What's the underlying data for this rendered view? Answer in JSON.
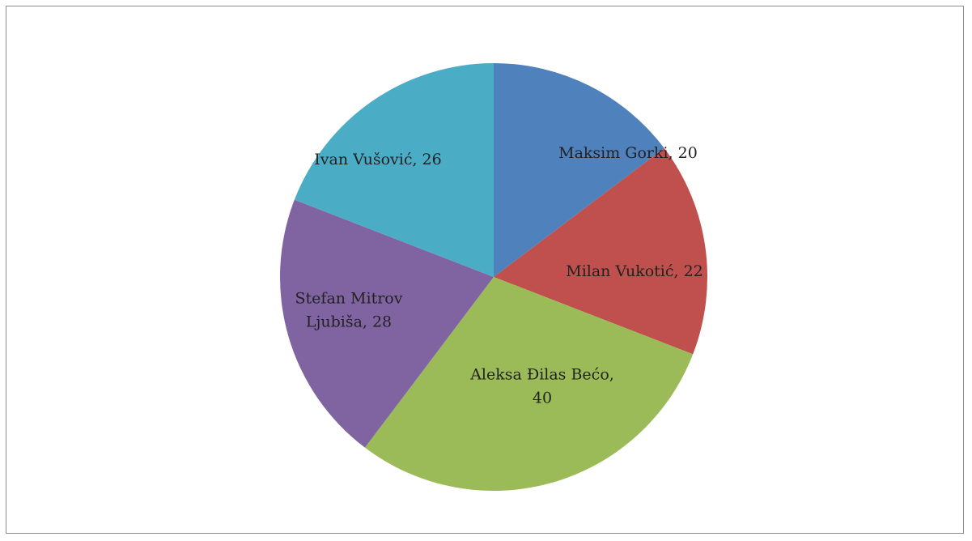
{
  "chart_data": {
    "type": "pie",
    "title": "",
    "series": [
      {
        "values": [
          20,
          22,
          40,
          28,
          26
        ],
        "categories": [
          "Maksim Gorki",
          "Milan Vukotić",
          "Aleksa Đilas Bećo",
          "Stefan Mitrov Ljubiša",
          "Ivan Vušović"
        ]
      }
    ],
    "slices": [
      {
        "label": "Maksim Gorki",
        "value": 20,
        "color": "#4F81BD",
        "label_lines": [
          "Maksim Gorki, 20"
        ]
      },
      {
        "label": "Milan Vukotić",
        "value": 22,
        "color": "#C0504D",
        "label_lines": [
          "Milan Vukotić, 22"
        ]
      },
      {
        "label": "Aleksa Đilas Bećo",
        "value": 40,
        "color": "#9BBB59",
        "label_lines": [
          "Aleksa Đilas Bećo,",
          "40"
        ]
      },
      {
        "label": "Stefan Mitrov Ljubiša",
        "value": 28,
        "color": "#8064A2",
        "label_lines": [
          "Stefan Mitrov",
          "Ljubiša, 28"
        ]
      },
      {
        "label": "Ivan Vušović",
        "value": 26,
        "color": "#4BACC6",
        "label_lines": [
          "Ivan Vušović, 26"
        ]
      }
    ],
    "legend": "none",
    "data_labels": "category and value inside slices"
  }
}
